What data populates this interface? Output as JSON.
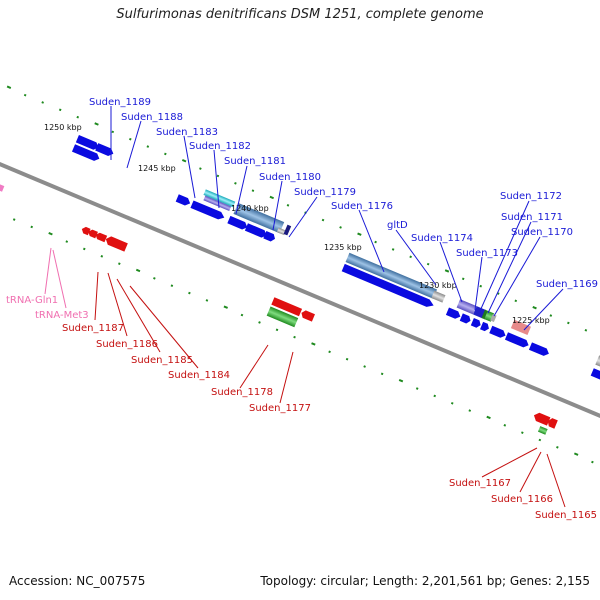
{
  "title": "Sulfurimonas denitrificans DSM 1251, complete genome",
  "footer": {
    "accession": "Accession: NC_007575",
    "summary": "Topology: circular; Length: 2,201,561 bp; Genes: 2,155"
  },
  "kbp_labels": [
    "1250 kbp",
    "1245 kbp",
    "1240 kbp",
    "1235 kbp",
    "1230 kbp",
    "1225 kbp"
  ],
  "gene_labels": {
    "forward": [
      "Suden_1189",
      "Suden_1188",
      "Suden_1183",
      "Suden_1182",
      "Suden_1181",
      "Suden_1180",
      "Suden_1179",
      "Suden_1176",
      "gltD",
      "Suden_1174",
      "Suden_1173",
      "Suden_1172",
      "Suden_1171",
      "Suden_1170",
      "Suden_1169"
    ],
    "reverse": [
      "Suden_1187",
      "Suden_1186",
      "Suden_1185",
      "Suden_1184",
      "Suden_1178",
      "Suden_1177",
      "Suden_1167",
      "Suden_1166",
      "Suden_1165"
    ],
    "rna": [
      "tRNA-Gln1",
      "tRNA-Met3"
    ]
  },
  "colors": {
    "forward_cds": "#0a0ae0",
    "reverse_cds": "#e01010",
    "rna_label": "#f06fb0",
    "backbone": "#8c8c8c",
    "tick": "#1f8a1f"
  }
}
